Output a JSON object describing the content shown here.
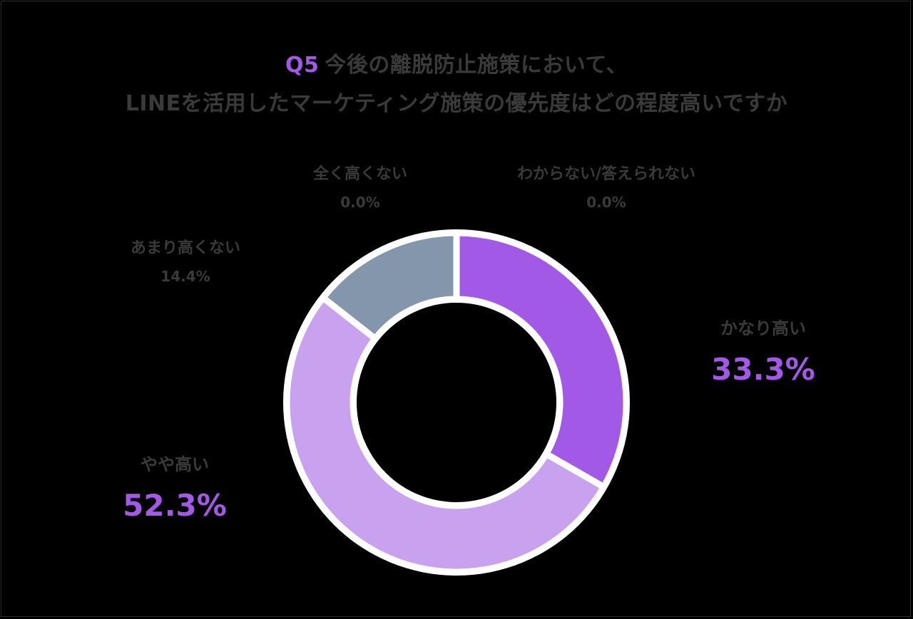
{
  "title": {
    "prefix": "Q5",
    "line1": "今後の離脱防止施策において、",
    "line2": "LINEを活用したマーケティング施策の優先度はどの程度高いですか"
  },
  "chart_data": {
    "type": "pie",
    "donut": true,
    "slices": [
      {
        "label": "かなり高い",
        "value": 33.3,
        "value_label": "33.3%",
        "color": "#a259e6"
      },
      {
        "label": "やや高い",
        "value": 52.3,
        "value_label": "52.3%",
        "color": "#c9a2ef"
      },
      {
        "label": "あまり高くない",
        "value": 14.4,
        "value_label": "14.4%",
        "color": "#8496ab"
      },
      {
        "label": "全く高くない",
        "value": 0.0,
        "value_label": "0.0%",
        "color": "#5b6b7a"
      },
      {
        "label": "わからない/答えられない",
        "value": 0.0,
        "value_label": "0.0%",
        "color": "#cccccc"
      }
    ],
    "start_angle": "12 o'clock",
    "direction": "clockwise",
    "separator_color": "#ffffff",
    "highlight_color": "#a259e6"
  }
}
